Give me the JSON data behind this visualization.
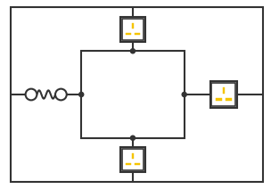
{
  "line_color": "#333333",
  "line_width": 1.5,
  "slot_color": "#f5c400",
  "node_color": "#333333",
  "fig_w": 3.04,
  "fig_h": 2.12,
  "OL": 0.04,
  "OR": 0.97,
  "OB": 0.04,
  "OT": 0.96,
  "IL": 0.3,
  "IR": 0.68,
  "IB": 0.27,
  "IT": 0.73
}
